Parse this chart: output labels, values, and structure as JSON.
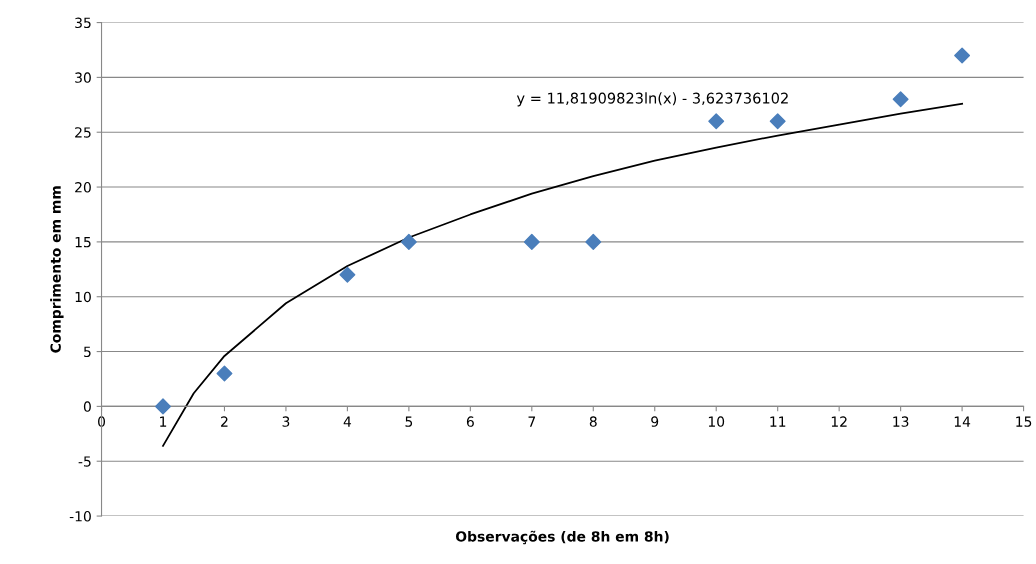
{
  "chart_data": {
    "type": "scatter",
    "xlabel": "Observações (de 8h em 8h)",
    "ylabel": "Comprimento em mm",
    "x": [
      1,
      2,
      4,
      5,
      7,
      8,
      10,
      11,
      13,
      14
    ],
    "series": [
      {
        "color": "#4a7ebb",
        "marker": "diamond",
        "values": [
          0,
          3,
          12,
          15,
          15,
          15,
          26,
          26,
          28,
          32
        ]
      },
      {
        "type": "line",
        "color": "#000000",
        "marker": "none",
        "x": [
          1,
          1.5,
          2,
          3,
          4,
          5,
          6,
          7,
          8,
          9,
          10,
          11,
          12,
          13,
          14
        ],
        "values": [
          -3.6,
          1.2,
          4.6,
          9.4,
          12.8,
          15.4,
          17.5,
          19.4,
          21,
          22.4,
          23.6,
          24.7,
          25.7,
          26.7,
          27.6
        ]
      }
    ],
    "annotations": [
      "y = 11,81909823ln(x) - 3,623736102"
    ],
    "xlim": [
      0,
      15
    ],
    "xticks": [
      0,
      1,
      2,
      3,
      4,
      5,
      6,
      7,
      8,
      9,
      10,
      11,
      12,
      13,
      14,
      15
    ],
    "ylim": [
      -10,
      35
    ],
    "yticks": [
      -10,
      -5,
      0,
      5,
      10,
      15,
      20,
      25,
      30,
      35
    ],
    "grid": "y",
    "legend": false
  }
}
